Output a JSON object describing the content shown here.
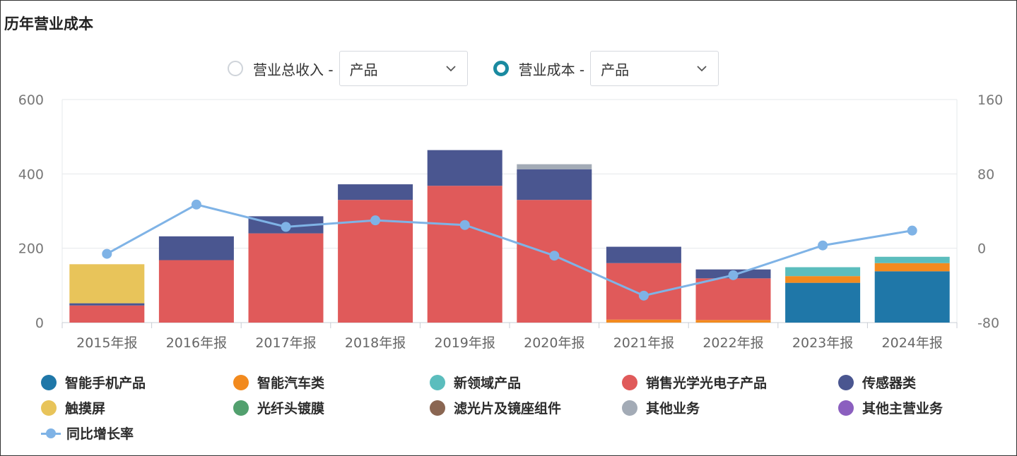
{
  "title": "历年营业成本",
  "controls": {
    "option1": {
      "label": "营业总收入 -",
      "select": "产品",
      "selected": false
    },
    "option2": {
      "label": "营业成本 -",
      "select": "产品",
      "selected": true
    }
  },
  "chart_data": {
    "type": "bar",
    "stacked": true,
    "categories": [
      "2015年报",
      "2016年报",
      "2017年报",
      "2018年报",
      "2019年报",
      "2020年报",
      "2021年报",
      "2022年报",
      "2023年报",
      "2024年报"
    ],
    "left_axis": {
      "ylim": [
        0,
        600
      ],
      "ticks": [
        "0",
        "200",
        "400",
        "600"
      ]
    },
    "right_axis": {
      "ylim": [
        -80,
        160
      ],
      "ticks": [
        "-80",
        "0",
        "80",
        "160"
      ]
    },
    "series": [
      {
        "name": "智能手机产品",
        "color": "#1f77a8",
        "values": [
          0,
          0,
          0,
          0,
          0,
          0,
          0,
          0,
          107,
          138
        ]
      },
      {
        "name": "智能汽车类",
        "color": "#f28a1e",
        "values": [
          0,
          0,
          0,
          0,
          0,
          0,
          8,
          7,
          18,
          22
        ]
      },
      {
        "name": "新领域产品",
        "color": "#5bbdbd",
        "values": [
          0,
          0,
          0,
          0,
          0,
          0,
          0,
          0,
          24,
          17
        ]
      },
      {
        "name": "销售光学光电子产品",
        "color": "#e05a5a",
        "values": [
          46,
          168,
          240,
          330,
          368,
          330,
          152,
          112,
          0,
          0
        ]
      },
      {
        "name": "传感器类",
        "color": "#4a5690",
        "values": [
          6,
          64,
          46,
          42,
          96,
          82,
          44,
          24,
          0,
          0
        ]
      },
      {
        "name": "触摸屏",
        "color": "#e8c45a",
        "values": [
          105,
          0,
          0,
          0,
          0,
          0,
          0,
          0,
          0,
          0
        ]
      },
      {
        "name": "光纤头镀膜",
        "color": "#52a06e",
        "values": [
          0,
          0,
          0,
          0,
          0,
          0,
          0,
          0,
          0,
          0
        ]
      },
      {
        "name": "滤光片及镜座组件",
        "color": "#8a6652",
        "values": [
          0,
          0,
          0,
          0,
          0,
          0,
          0,
          0,
          0,
          0
        ]
      },
      {
        "name": "其他业务",
        "color": "#a3abb6",
        "values": [
          0,
          0,
          0,
          0,
          0,
          14,
          0,
          0,
          0,
          0
        ]
      },
      {
        "name": "其他主营业务",
        "color": "#8b5fbf",
        "values": [
          0,
          0,
          0,
          0,
          0,
          0,
          0,
          0,
          0,
          0
        ]
      }
    ],
    "line": {
      "name": "同比增长率",
      "color": "#7fb3e6",
      "axis": "right",
      "values": [
        -6,
        47,
        23,
        30,
        25,
        -8,
        -51,
        -29,
        3,
        19
      ]
    }
  }
}
